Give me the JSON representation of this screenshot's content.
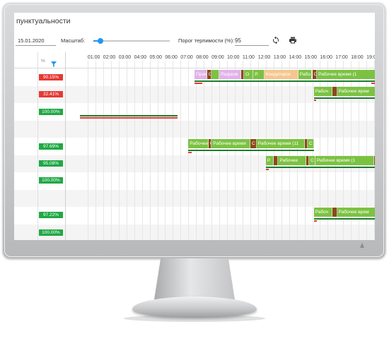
{
  "app": {
    "title": "пунктуальности"
  },
  "toolbar": {
    "date_value": "15.01.2020",
    "scale_label": "Масштаб:",
    "scale_level": 0.32,
    "tolerance_label": "Порог терпимости (%):",
    "tolerance_value": "95",
    "refresh_icon": "refresh-icon",
    "print_icon": "print-icon"
  },
  "grid": {
    "percent_header": "%",
    "filter_icon": "filter-icon",
    "hours": [
      "01:00",
      "02:00",
      "03:00",
      "04:00",
      "05:00",
      "06:00",
      "07:00",
      "08:00",
      "09:00",
      "10:00",
      "11:00",
      "12:00",
      "13:00",
      "14:00",
      "15:00",
      "16:00",
      "17:00",
      "18:00",
      "19:00"
    ],
    "rows": [
      {
        "percent": "90.15%",
        "status": "red"
      },
      {
        "percent": "32.41%",
        "status": "red"
      },
      {
        "percent": "100.00%",
        "status": "green"
      },
      {
        "percent": "",
        "status": "none"
      },
      {
        "percent": "97.69%",
        "status": "green"
      },
      {
        "percent": "95.08%",
        "status": "green"
      },
      {
        "percent": "100.00%",
        "status": "green"
      },
      {
        "percent": "",
        "status": "none"
      },
      {
        "percent": "97.22%",
        "status": "green"
      },
      {
        "percent": "100.00%",
        "status": "green"
      },
      {
        "percent": "100.00%",
        "status": "green"
      }
    ],
    "segments": [
      {
        "row": 0,
        "start": 7.4,
        "end": 8.2,
        "label": "Прие",
        "color": "#e2b3e8"
      },
      {
        "row": 0,
        "start": 8.2,
        "end": 8.5,
        "label": "С",
        "color": "#8a4a1d"
      },
      {
        "row": 0,
        "start": 8.5,
        "end": 9.0,
        "label": "",
        "color": "#7cc242"
      },
      {
        "row": 0,
        "start": 9.0,
        "end": 10.4,
        "label": "Разрезе",
        "color": "#e2b3e8"
      },
      {
        "row": 0,
        "start": 10.4,
        "end": 10.6,
        "label": "",
        "color": "#8a4a1d"
      },
      {
        "row": 0,
        "start": 10.6,
        "end": 11.2,
        "label": "О",
        "color": "#7cc242"
      },
      {
        "row": 0,
        "start": 11.2,
        "end": 11.9,
        "label": "Р.",
        "color": "#7cc242"
      },
      {
        "row": 0,
        "start": 11.9,
        "end": 14.1,
        "label": "Кондитерск",
        "color": "#f5c78e"
      },
      {
        "row": 0,
        "start": 14.1,
        "end": 15.0,
        "label": "Рабо",
        "color": "#7cc242"
      },
      {
        "row": 0,
        "start": 15.0,
        "end": 15.3,
        "label": "С",
        "color": "#8a4a1d"
      },
      {
        "row": 0,
        "start": 15.3,
        "end": 19.4,
        "label": "Рабочее время (1",
        "color": "#7cc242"
      },
      {
        "row": 1,
        "start": 15.1,
        "end": 16.3,
        "label": "Рабоч",
        "color": "#7cc242"
      },
      {
        "row": 1,
        "start": 16.3,
        "end": 16.6,
        "label": "",
        "color": "#8a4a1d"
      },
      {
        "row": 1,
        "start": 16.6,
        "end": 19.6,
        "label": "Рабочее врем",
        "color": "#7cc242"
      },
      {
        "row": 4,
        "start": 7.0,
        "end": 8.3,
        "label": "Рабочее вр",
        "color": "#7cc242"
      },
      {
        "row": 4,
        "start": 8.3,
        "end": 8.5,
        "label": "С",
        "color": "#8a4a1d"
      },
      {
        "row": 4,
        "start": 8.5,
        "end": 11.0,
        "label": "Рабочее время",
        "color": "#7cc242"
      },
      {
        "row": 4,
        "start": 11.0,
        "end": 11.4,
        "label": "С",
        "color": "#8a4a1d"
      },
      {
        "row": 4,
        "start": 11.4,
        "end": 14.5,
        "label": "Рабочее время (11",
        "color": "#7cc242"
      },
      {
        "row": 4,
        "start": 14.5,
        "end": 14.7,
        "label": "",
        "color": "#8a4a1d"
      },
      {
        "row": 4,
        "start": 14.7,
        "end": 15.1,
        "label": "С",
        "color": "#7cc242"
      },
      {
        "row": 5,
        "start": 12.0,
        "end": 12.5,
        "label": "Р.",
        "color": "#7cc242"
      },
      {
        "row": 5,
        "start": 12.5,
        "end": 12.8,
        "label": "",
        "color": "#8a4a1d"
      },
      {
        "row": 5,
        "start": 12.8,
        "end": 14.6,
        "label": "Рабочее",
        "color": "#7cc242"
      },
      {
        "row": 5,
        "start": 14.6,
        "end": 14.8,
        "label": "",
        "color": "#8a4a1d"
      },
      {
        "row": 5,
        "start": 14.8,
        "end": 15.2,
        "label": "С",
        "color": "#7cc242"
      },
      {
        "row": 5,
        "start": 15.2,
        "end": 19.0,
        "label": "Рабочее время (1",
        "color": "#7cc242"
      },
      {
        "row": 5,
        "start": 19.0,
        "end": 19.2,
        "label": "",
        "color": "#8a4a1d"
      },
      {
        "row": 5,
        "start": 19.2,
        "end": 19.6,
        "label": "",
        "color": "#7cc242"
      },
      {
        "row": 8,
        "start": 15.1,
        "end": 16.3,
        "label": "Рабоч",
        "color": "#7cc242"
      },
      {
        "row": 8,
        "start": 16.3,
        "end": 16.6,
        "label": "",
        "color": "#8a4a1d"
      },
      {
        "row": 8,
        "start": 16.6,
        "end": 19.6,
        "label": "Рабочее врем",
        "color": "#7cc242"
      }
    ],
    "plan_lines": [
      {
        "row": 0,
        "start": 7.4,
        "end": 19.4
      },
      {
        "row": 1,
        "start": 15.1,
        "end": 19.6
      },
      {
        "row": 2,
        "start": 0.0,
        "end": 6.3
      },
      {
        "row": 4,
        "start": 7.0,
        "end": 15.1
      },
      {
        "row": 5,
        "start": 12.0,
        "end": 19.6
      },
      {
        "row": 8,
        "start": 15.1,
        "end": 19.6
      }
    ],
    "red_lines": [
      {
        "row": 0,
        "start": 7.4,
        "end": 7.9
      },
      {
        "row": 0,
        "start": 18.8,
        "end": 19.3
      },
      {
        "row": 1,
        "start": 15.1,
        "end": 15.2
      },
      {
        "row": 2,
        "start": 0.0,
        "end": 6.3
      },
      {
        "row": 4,
        "start": 7.0,
        "end": 7.2
      },
      {
        "row": 5,
        "start": 12.0,
        "end": 12.2
      },
      {
        "row": 8,
        "start": 15.1,
        "end": 15.3
      }
    ]
  },
  "colors": {
    "red": "#e53935",
    "green": "#1fa844",
    "plan": "#1b7d2a",
    "accent": "#2196f3"
  }
}
